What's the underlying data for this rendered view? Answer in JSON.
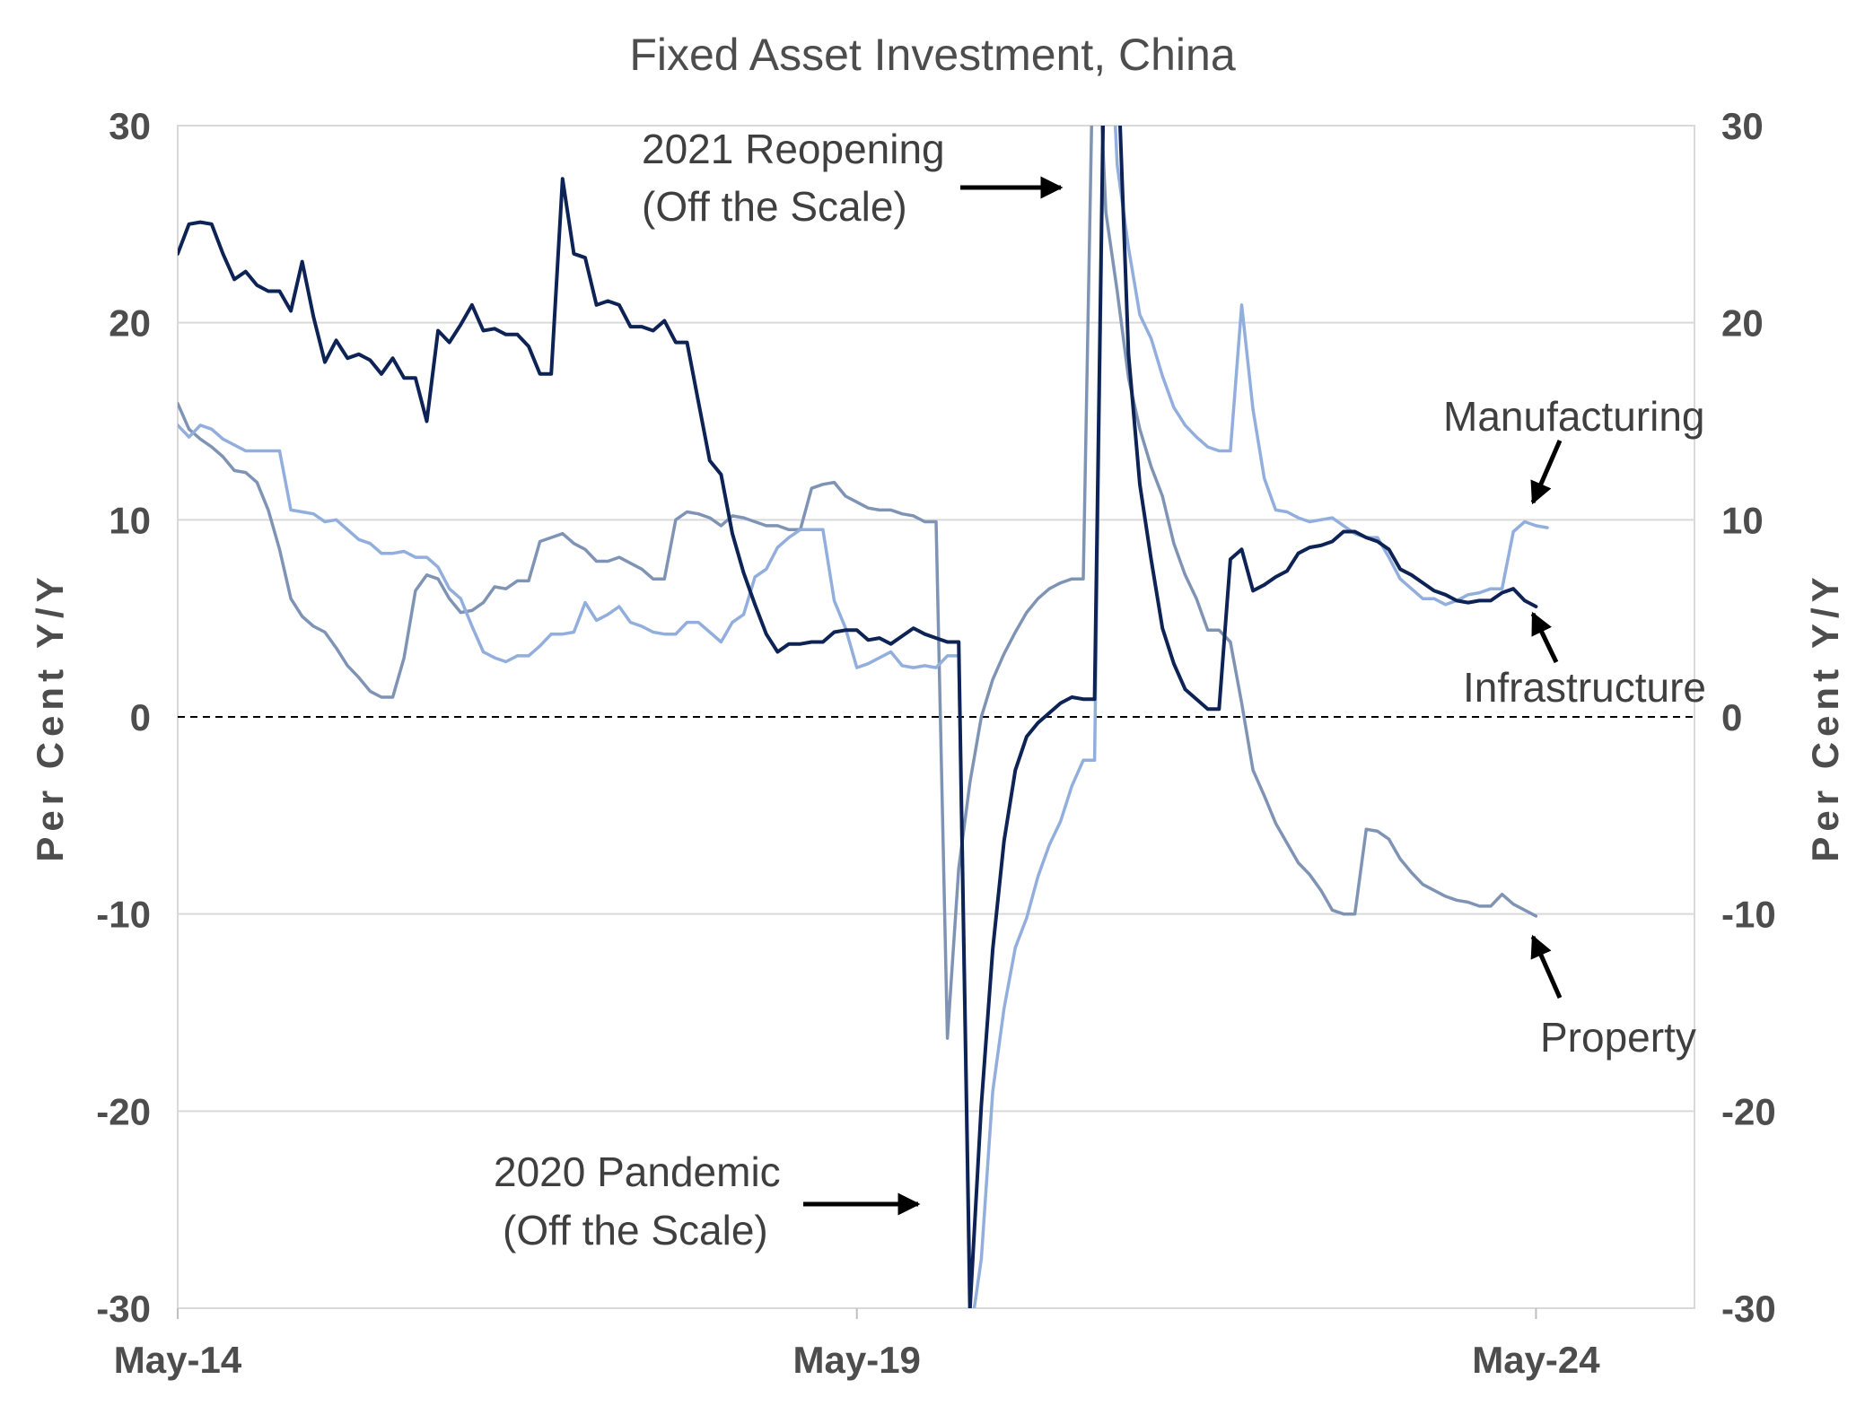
{
  "chart_data": {
    "type": "line",
    "title": "Fixed Asset Investment, China",
    "ylabel_left": "Per Cent Y/Y",
    "ylabel_right": "Per Cent Y/Y",
    "ylim": [
      -30,
      30
    ],
    "yticks": [
      30,
      20,
      10,
      0,
      -10,
      -20,
      -30
    ],
    "x_tick_labels": [
      "May-14",
      "May-19",
      "May-24"
    ],
    "x_start": "2014-05",
    "x_end": "2025-07",
    "grid": true,
    "zero_line": "dashed",
    "series": [
      {
        "name": "Infrastructure",
        "color": "#0d2356",
        "start": "2014-05",
        "values": [
          23.5,
          25.0,
          25.1,
          25.0,
          23.5,
          22.2,
          22.6,
          21.9,
          21.6,
          21.6,
          20.6,
          23.1,
          20.3,
          18.0,
          19.1,
          18.2,
          18.4,
          18.1,
          17.4,
          18.2,
          17.2,
          17.2,
          15.0,
          19.6,
          19.0,
          19.9,
          20.9,
          19.6,
          19.7,
          19.4,
          19.4,
          18.8,
          17.4,
          17.4,
          27.3,
          23.5,
          23.3,
          20.9,
          21.1,
          20.9,
          19.8,
          19.8,
          19.6,
          20.1,
          19.0,
          19.0,
          16.0,
          13.0,
          12.3,
          9.3,
          7.3,
          5.7,
          4.2,
          3.3,
          3.7,
          3.7,
          3.8,
          3.8,
          4.3,
          4.4,
          4.4,
          3.9,
          4.0,
          3.7,
          4.1,
          4.5,
          4.2,
          4.0,
          3.8,
          3.8,
          -30.0,
          -19.7,
          -11.8,
          -6.3,
          -2.7,
          -1.0,
          -0.3,
          0.2,
          0.7,
          1.0,
          0.9,
          0.9,
          40.0,
          34.0,
          18.4,
          11.8,
          8.0,
          4.5,
          2.7,
          1.4,
          0.9,
          0.4,
          0.4,
          8.0,
          8.5,
          6.4,
          6.7,
          7.1,
          7.4,
          8.3,
          8.6,
          8.7,
          8.9,
          9.4,
          9.4,
          9.1,
          8.9,
          8.5,
          7.5,
          7.2,
          6.8,
          6.4,
          6.2,
          5.9,
          5.8,
          5.9,
          5.9,
          6.3,
          6.5,
          5.9,
          5.6
        ]
      },
      {
        "name": "Manufacturing",
        "color": "#92aedd",
        "start": "2014-05",
        "values": [
          14.8,
          14.2,
          14.8,
          14.6,
          14.1,
          13.8,
          13.5,
          13.5,
          13.5,
          13.5,
          10.5,
          10.4,
          10.3,
          9.9,
          10.0,
          9.5,
          9.0,
          8.8,
          8.3,
          8.3,
          8.4,
          8.1,
          8.1,
          7.6,
          6.5,
          6.0,
          4.6,
          3.3,
          3.0,
          2.8,
          3.1,
          3.1,
          3.6,
          4.2,
          4.2,
          4.3,
          5.8,
          4.9,
          5.2,
          5.6,
          4.8,
          4.6,
          4.3,
          4.2,
          4.2,
          4.8,
          4.8,
          4.3,
          3.8,
          4.8,
          5.2,
          7.1,
          7.5,
          8.6,
          9.1,
          9.5,
          9.5,
          9.5,
          5.9,
          4.5,
          2.5,
          2.7,
          3.0,
          3.3,
          2.6,
          2.5,
          2.6,
          2.5,
          3.1,
          3.1,
          -31.5,
          -27.5,
          -19.0,
          -14.8,
          -11.7,
          -10.2,
          -8.1,
          -6.5,
          -5.3,
          -3.5,
          -2.2,
          -2.2,
          40.0,
          28.0,
          23.8,
          20.4,
          19.2,
          17.3,
          15.7,
          14.8,
          14.2,
          13.7,
          13.5,
          13.5,
          20.9,
          15.6,
          12.1,
          10.5,
          10.4,
          10.1,
          9.9,
          10.0,
          10.1,
          9.7,
          9.3,
          9.1,
          9.1,
          8.1,
          7.0,
          6.5,
          6.0,
          6.0,
          5.7,
          5.9,
          6.2,
          6.3,
          6.5,
          6.5,
          9.4,
          9.9,
          9.7,
          9.6
        ]
      },
      {
        "name": "Property",
        "color": "#7f94b5",
        "start": "2014-05",
        "values": [
          15.9,
          14.6,
          14.1,
          13.7,
          13.2,
          12.5,
          12.4,
          11.9,
          10.5,
          8.5,
          6.0,
          5.1,
          4.6,
          4.3,
          3.5,
          2.6,
          2.0,
          1.3,
          1.0,
          1.0,
          3.0,
          6.4,
          7.2,
          7.0,
          6.0,
          5.3,
          5.4,
          5.8,
          6.6,
          6.5,
          6.9,
          6.9,
          8.9,
          9.1,
          9.3,
          8.8,
          8.5,
          7.9,
          7.9,
          8.1,
          7.8,
          7.5,
          7.0,
          7.0,
          10.0,
          10.4,
          10.3,
          10.1,
          9.7,
          10.2,
          10.1,
          9.9,
          9.7,
          9.7,
          9.5,
          9.5,
          11.6,
          11.8,
          11.9,
          11.2,
          10.9,
          10.6,
          10.5,
          10.5,
          10.3,
          10.2,
          9.9,
          9.9,
          -16.3,
          -7.7,
          -3.3,
          0.0,
          1.9,
          3.2,
          4.3,
          5.3,
          6.0,
          6.5,
          6.8,
          7.0,
          7.0,
          38.3,
          25.6,
          21.6,
          17.2,
          14.6,
          12.7,
          11.2,
          8.8,
          7.2,
          6.0,
          4.4,
          4.4,
          3.8,
          0.7,
          -2.7,
          -4.0,
          -5.4,
          -6.4,
          -7.4,
          -8.0,
          -8.8,
          -9.8,
          -10.0,
          -10.0,
          -5.7,
          -5.8,
          -6.2,
          -7.2,
          -7.9,
          -8.5,
          -8.8,
          -9.1,
          -9.3,
          -9.4,
          -9.6,
          -9.6,
          -9.0,
          -9.5,
          -9.8,
          -10.1
        ]
      }
    ]
  },
  "annotations": {
    "reopening_line1": "2021 Reopening",
    "reopening_line2": "(Off the Scale)",
    "pandemic_line1": "2020 Pandemic",
    "pandemic_line2": "(Off the Scale)",
    "manufacturing": "Manufacturing",
    "infrastructure": "Infrastructure",
    "property": "Property"
  }
}
